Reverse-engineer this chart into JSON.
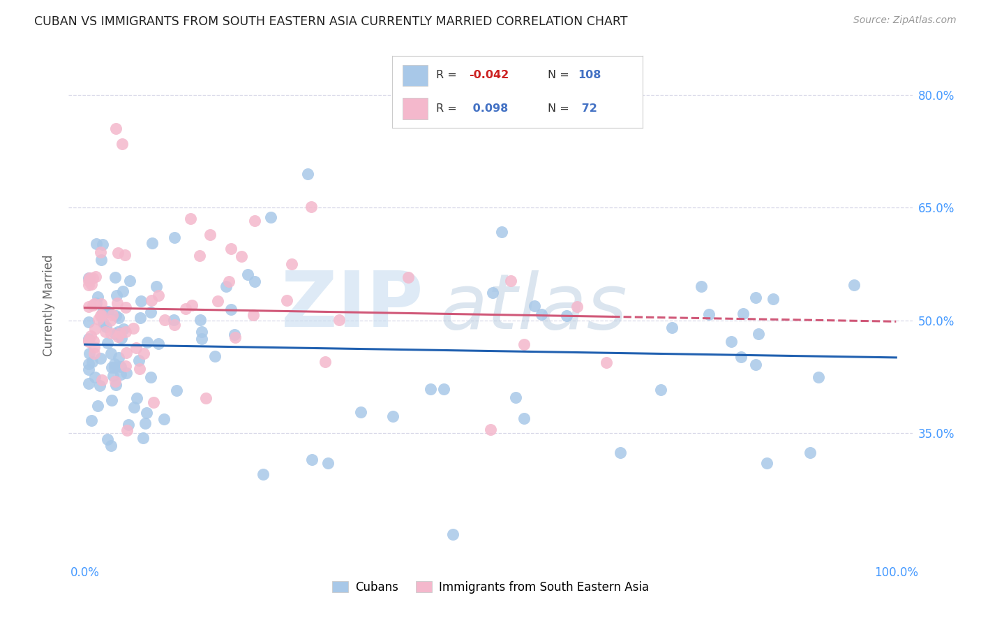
{
  "title": "CUBAN VS IMMIGRANTS FROM SOUTH EASTERN ASIA CURRENTLY MARRIED CORRELATION CHART",
  "source": "Source: ZipAtlas.com",
  "ylabel_label": "Currently Married",
  "cubans_R": -0.042,
  "cubans_N": 108,
  "sea_R": 0.098,
  "sea_N": 72,
  "cubans_color": "#a8c8e8",
  "cubans_edge": "#7aaed4",
  "sea_color": "#f4b8cc",
  "sea_edge": "#e090a8",
  "trend_cuban_color": "#2060b0",
  "trend_sea_color": "#d05878",
  "background_color": "#ffffff",
  "grid_color": "#d8d8e8",
  "watermark_zip_color": "#c8ddf0",
  "watermark_atlas_color": "#b8cce0",
  "legend_border_color": "#cccccc",
  "r_neg_color": "#cc2020",
  "r_pos_color": "#4472c4",
  "n_color": "#4472c4",
  "tick_color": "#4499ff",
  "ylabel_color": "#666666",
  "title_color": "#222222",
  "source_color": "#999999",
  "ylim_low": 0.18,
  "ylim_high": 0.86,
  "yticks": [
    0.35,
    0.5,
    0.65,
    0.8
  ],
  "ytick_labels": [
    "35.0%",
    "50.0%",
    "65.0%",
    "80.0%"
  ],
  "xticks": [
    0.0,
    0.25,
    0.5,
    0.75,
    1.0
  ],
  "xtick_labels": [
    "0.0%",
    "",
    "",
    "",
    "100.0%"
  ]
}
